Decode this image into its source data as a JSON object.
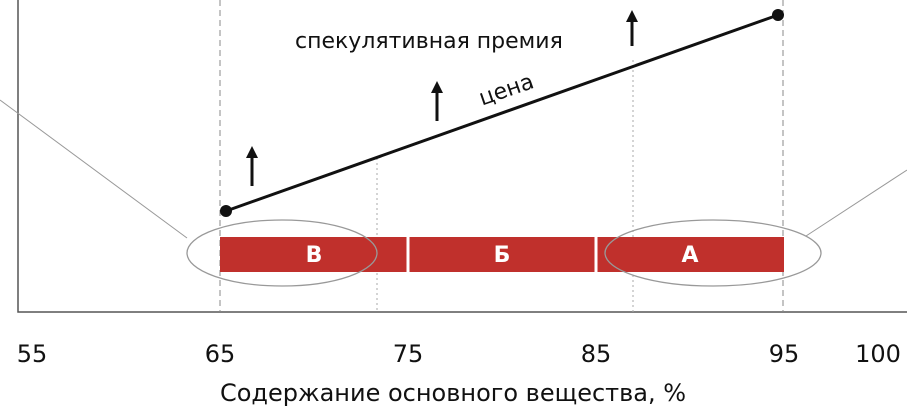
{
  "chart_data": {
    "type": "zones",
    "xlabel": "Содержание основного вещества, %",
    "xlim": [
      55,
      100
    ],
    "xticks": [
      55,
      65,
      75,
      85,
      95,
      100
    ],
    "zones": [
      {
        "label": "В",
        "from": 65,
        "to": 75
      },
      {
        "label": "Б",
        "from": 75,
        "to": 85
      },
      {
        "label": "А",
        "from": 85,
        "to": 95
      }
    ],
    "color": "#c0302c",
    "annotations": [
      "спекулятивная премия",
      "цена"
    ]
  }
}
